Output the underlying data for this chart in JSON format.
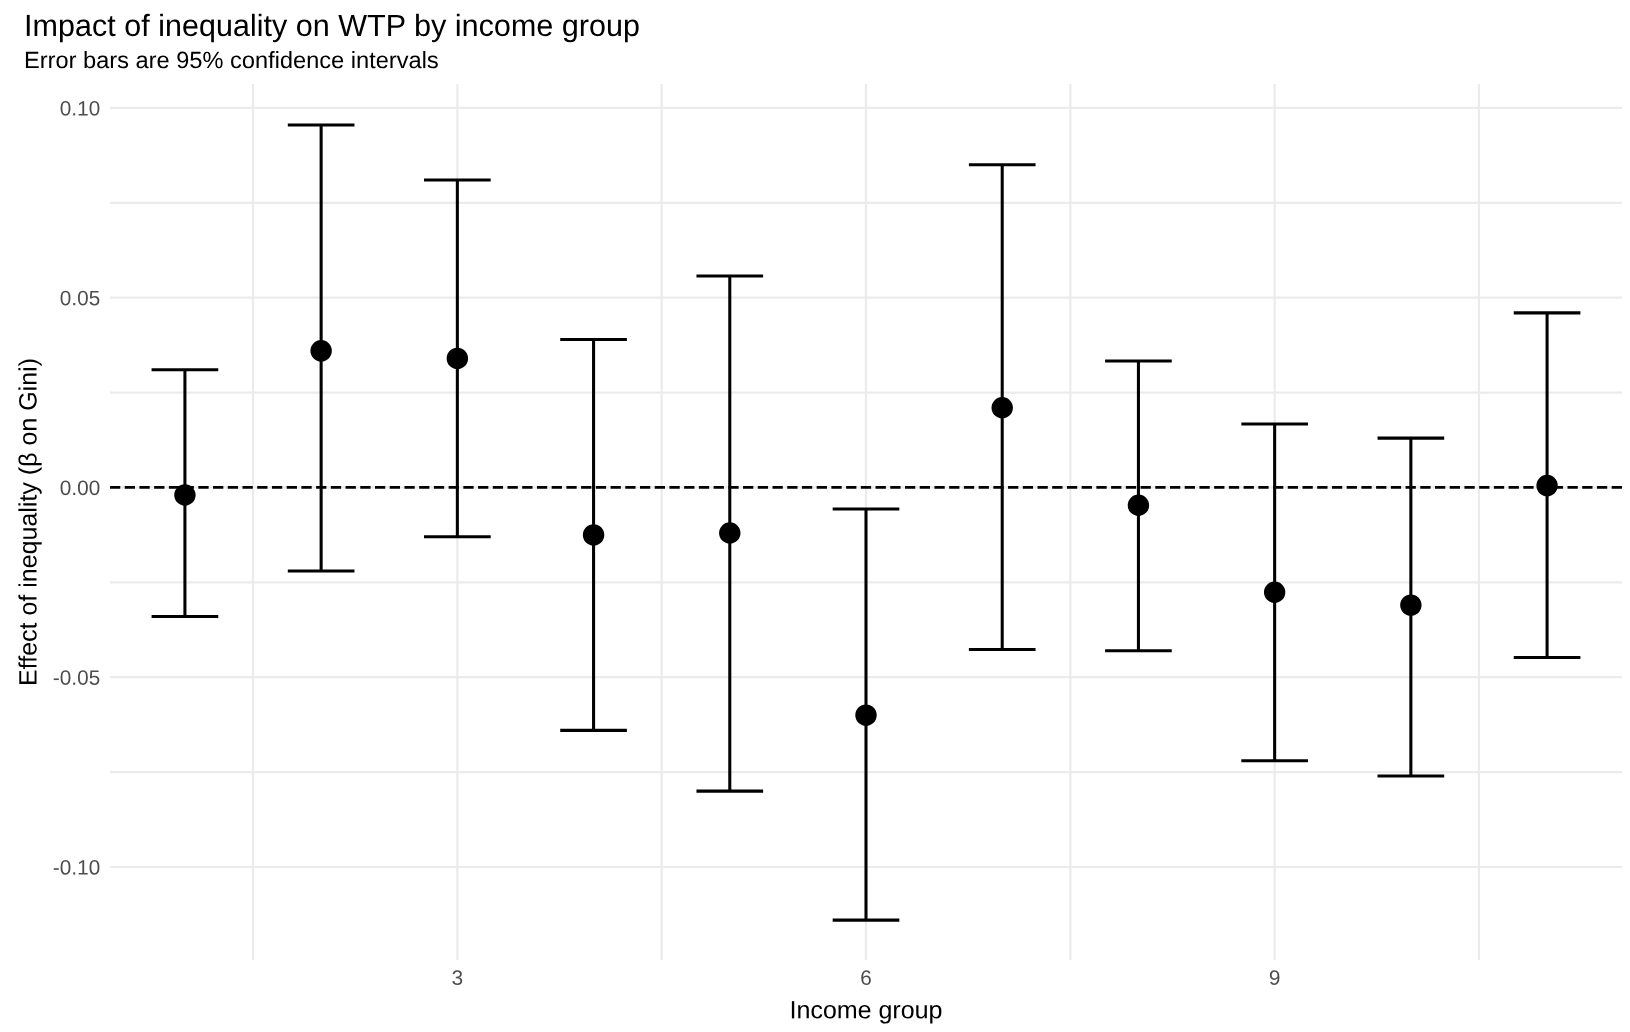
{
  "chart_data": {
    "type": "scatter",
    "title": "Impact of inequality on WTP by income group",
    "subtitle": "Error bars are 95% confidence intervals",
    "xlabel": "Income group",
    "ylabel": "Effect of inequality (β on Gini)",
    "x": [
      1,
      2,
      3,
      4,
      5,
      6,
      7,
      8,
      9,
      10,
      11
    ],
    "series": [
      {
        "color": "#000000",
        "values": [
          -0.002,
          0.036,
          0.034,
          -0.0125,
          -0.012,
          -0.06,
          0.021,
          -0.0047,
          -0.0276,
          -0.031,
          0.0005
        ],
        "errors": [
          [
            -0.034,
            0.031
          ],
          [
            -0.022,
            0.0955
          ],
          [
            -0.013,
            0.081
          ],
          [
            -0.064,
            0.039
          ],
          [
            -0.08,
            0.0557
          ],
          [
            -0.114,
            -0.0057
          ],
          [
            -0.0427,
            0.085
          ],
          [
            -0.043,
            0.0333
          ],
          [
            -0.072,
            0.0167
          ],
          [
            -0.076,
            0.013
          ],
          [
            -0.0448,
            0.046
          ]
        ]
      }
    ],
    "xlim": [
      0.45,
      11.55
    ],
    "ylim": [
      -0.1245,
      0.1063
    ],
    "xticks": [
      {
        "value": 1.5,
        "label": null
      },
      3,
      {
        "value": 4.5,
        "label": null
      },
      6,
      {
        "value": 7.5,
        "label": null
      },
      9,
      {
        "value": 10.5,
        "label": null
      }
    ],
    "yticks": [
      {
        "value": -0.1,
        "label": "-0.10"
      },
      {
        "value": -0.075,
        "label": null
      },
      {
        "value": -0.05,
        "label": "-0.05"
      },
      {
        "value": -0.025,
        "label": null
      },
      {
        "value": 0,
        "label": "0.00"
      },
      {
        "value": 0.025,
        "label": null
      },
      {
        "value": 0.05,
        "label": "0.05"
      },
      {
        "value": 0.075,
        "label": null
      },
      {
        "value": 0.1,
        "label": "0.10"
      }
    ],
    "ref_lines": [
      {
        "axis": "y",
        "value": 0,
        "label": null,
        "color": "#000000",
        "line_style": "dashed"
      }
    ],
    "grid": true,
    "marker": "circle",
    "legend": false
  }
}
